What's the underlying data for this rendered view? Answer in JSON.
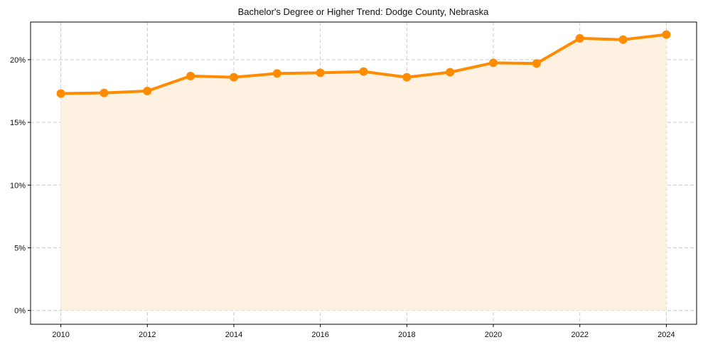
{
  "chart_data": {
    "type": "line",
    "title": "Bachelor's Degree or Higher Trend: Dodge County, Nebraska",
    "xlabel": "",
    "ylabel": "",
    "x": [
      2010,
      2011,
      2012,
      2013,
      2014,
      2015,
      2016,
      2017,
      2018,
      2019,
      2020,
      2021,
      2022,
      2023,
      2024
    ],
    "series": [
      {
        "name": "Bachelor's Degree or Higher",
        "values": [
          17.3,
          17.35,
          17.5,
          18.7,
          18.6,
          18.9,
          18.95,
          19.05,
          18.6,
          19.0,
          19.75,
          19.7,
          21.7,
          21.6,
          22.0
        ],
        "color": "#ff8c00",
        "fill_color": "#fff1e2",
        "marker": "circle"
      }
    ],
    "xticks": [
      2010,
      2012,
      2014,
      2016,
      2018,
      2020,
      2022,
      2024
    ],
    "yticks": [
      0,
      5,
      10,
      15,
      20
    ],
    "ytick_labels": [
      "0%",
      "5%",
      "10%",
      "15%",
      "20%"
    ],
    "xlim": [
      2009.3,
      2024.7
    ],
    "ylim": [
      -1.1,
      23.0
    ],
    "grid": true,
    "grid_style": "dashed",
    "legend": null
  }
}
